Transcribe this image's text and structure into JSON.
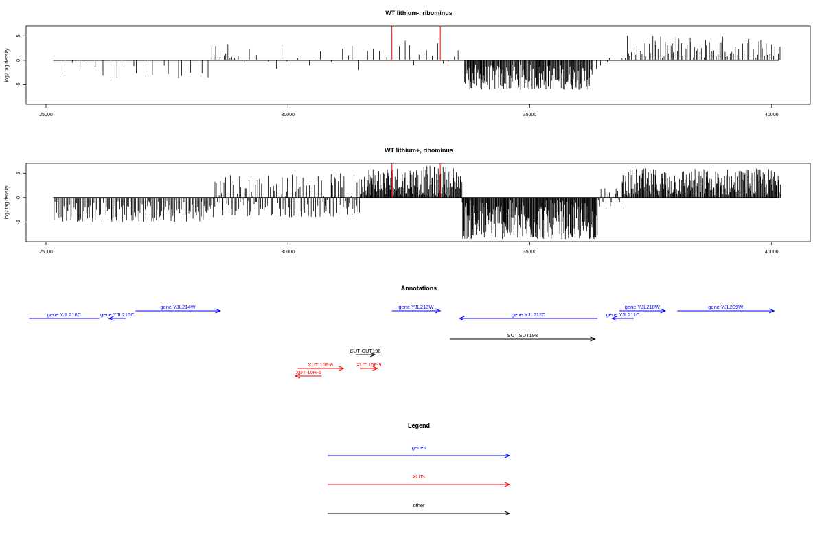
{
  "chart_data": [
    {
      "type": "bar",
      "title": "WT lithium-, ribominus",
      "ylabel": "log2 tag density",
      "xlim": [
        25000,
        40200
      ],
      "ylim": [
        -9,
        7
      ],
      "xticks": [
        "25000",
        "30000",
        "35000",
        "40000"
      ],
      "yticks": [
        "5",
        "0",
        "-5"
      ],
      "highlight_positions": [
        32150,
        33150
      ],
      "highlight_value": 7,
      "segments": [
        {
          "from": 25300,
          "to": 28400,
          "count": 20,
          "min": -4,
          "max": -0.5,
          "sign": -1
        },
        {
          "from": 28400,
          "to": 29000,
          "count": 14,
          "min": 0.5,
          "max": 3.5,
          "sign": 1
        },
        {
          "from": 29000,
          "to": 32000,
          "count": 22,
          "min": -3,
          "max": 3.5,
          "sign": 0
        },
        {
          "from": 32000,
          "to": 33600,
          "count": 14,
          "min": -1,
          "max": 4,
          "sign": 0
        },
        {
          "from": 33650,
          "to": 36300,
          "count": 200,
          "min": -6,
          "max": -0.8,
          "sign": -1
        },
        {
          "from": 36300,
          "to": 36950,
          "count": 6,
          "min": -2,
          "max": 1,
          "sign": 0
        },
        {
          "from": 36950,
          "to": 40200,
          "count": 90,
          "min": 0.5,
          "max": 5,
          "sign": 1
        }
      ]
    },
    {
      "type": "bar",
      "title": "WT lithium+, ribominus",
      "ylabel": "log2 tag density",
      "xlim": [
        25000,
        40200
      ],
      "ylim": [
        -9,
        7
      ],
      "xticks": [
        "25000",
        "30000",
        "35000",
        "40000"
      ],
      "yticks": [
        "5",
        "0",
        "-5"
      ],
      "highlight_positions": [
        32150,
        33150
      ],
      "highlight_value": 7,
      "segments": [
        {
          "from": 25150,
          "to": 28400,
          "count": 140,
          "min": -5,
          "max": -0.5,
          "sign": -1
        },
        {
          "from": 28400,
          "to": 31500,
          "count": 170,
          "min": -4,
          "max": 5,
          "sign": 0
        },
        {
          "from": 31500,
          "to": 33600,
          "count": 180,
          "min": 0.5,
          "max": 6.5,
          "sign": 1
        },
        {
          "from": 33600,
          "to": 36400,
          "count": 280,
          "min": -8.5,
          "max": -0.5,
          "sign": -1
        },
        {
          "from": 36400,
          "to": 36900,
          "count": 20,
          "min": -2,
          "max": 2,
          "sign": 0
        },
        {
          "from": 36900,
          "to": 40200,
          "count": 260,
          "min": 0.5,
          "max": 6,
          "sign": 1
        }
      ]
    }
  ],
  "annotations": {
    "title": "Annotations",
    "xlim": [
      25000,
      40200
    ],
    "items": [
      {
        "label": "gene YJL216C",
        "start": 24650,
        "end": 26100,
        "dir": -1,
        "row": 0,
        "color": "#0000ff",
        "head": false
      },
      {
        "label": "gene YJL215C",
        "start": 26300,
        "end": 26650,
        "dir": -1,
        "row": 0,
        "color": "#0000ff",
        "head": true
      },
      {
        "label": "gene YJL214W",
        "start": 26850,
        "end": 28600,
        "dir": 1,
        "row": 1,
        "color": "#0000ff",
        "head": true
      },
      {
        "label": "gene YJL213W",
        "start": 32150,
        "end": 33150,
        "dir": 1,
        "row": 1,
        "color": "#0000ff",
        "head": true
      },
      {
        "label": "gene YJL212C",
        "start": 33550,
        "end": 36400,
        "dir": -1,
        "row": 0,
        "color": "#0000ff",
        "head": true
      },
      {
        "label": "gene YJL211C",
        "start": 36700,
        "end": 37150,
        "dir": -1,
        "row": 0,
        "color": "#0000ff",
        "head": true
      },
      {
        "label": "gene YJL210W",
        "start": 36850,
        "end": 37800,
        "dir": 1,
        "row": 1,
        "color": "#0000ff",
        "head": true
      },
      {
        "label": "gene YJL209W",
        "start": 38050,
        "end": 40050,
        "dir": 1,
        "row": 1,
        "color": "#0000ff",
        "head": true
      },
      {
        "label": "SUT SUT198",
        "start": 33350,
        "end": 36350,
        "dir": 1,
        "row": 2,
        "color": "#000000",
        "head": true
      },
      {
        "label": "CUT CUT196",
        "start": 31400,
        "end": 31800,
        "dir": 1,
        "row": 3,
        "color": "#000000",
        "head": true
      },
      {
        "label": "XUT 10F-8",
        "start": 30200,
        "end": 31150,
        "dir": 1,
        "row": 4,
        "color": "#ff0000",
        "head": true
      },
      {
        "label": "XUT 10F-9",
        "start": 31500,
        "end": 31850,
        "dir": 1,
        "row": 4,
        "color": "#ff0000",
        "head": true
      },
      {
        "label": "XUT 10R-6",
        "start": 30150,
        "end": 30700,
        "dir": -1,
        "row": 5,
        "color": "#ff0000",
        "head": true
      }
    ]
  },
  "legend": {
    "title": "Legend",
    "items": [
      {
        "label": "genes",
        "color": "#0000ff"
      },
      {
        "label": "XUTs",
        "color": "#ff0000"
      },
      {
        "label": "other",
        "color": "#000000"
      }
    ]
  }
}
